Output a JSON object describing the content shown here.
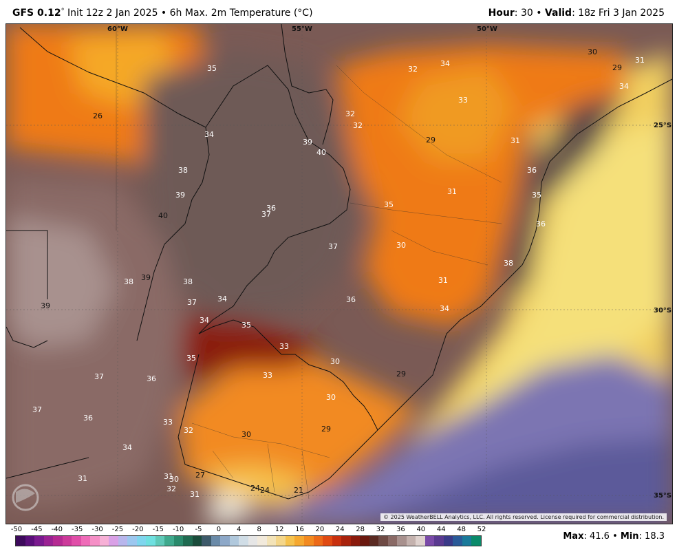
{
  "header": {
    "model": "GFS 0.12",
    "model_deg": "°",
    "init": " Init 12z 2 Jan 2025 • 6h Max. 2m Temperature (°C)",
    "hour_label": "Hour",
    "hour_value": ": 30 • ",
    "valid_label": "Valid",
    "valid_value": ": 18z Fri 3 Jan 2025"
  },
  "map": {
    "coords": [
      "60°W",
      "55°W",
      "50°W",
      "25°S",
      "30°S",
      "35°S"
    ],
    "labels": [
      "26",
      "35",
      "34",
      "38",
      "39",
      "40",
      "36",
      "37",
      "39",
      "38",
      "39",
      "38",
      "37",
      "34",
      "34",
      "35",
      "35",
      "37",
      "36",
      "37",
      "36",
      "34",
      "33",
      "32",
      "31",
      "30",
      "31",
      "32",
      "31",
      "27",
      "24",
      "24",
      "21",
      "29",
      "30",
      "33",
      "30",
      "33",
      "29",
      "30",
      "36",
      "37",
      "34",
      "31",
      "30",
      "36",
      "35",
      "31",
      "38",
      "36",
      "35",
      "33",
      "29",
      "31",
      "32",
      "32",
      "34",
      "32",
      "30",
      "29",
      "31",
      "34",
      "39",
      "40"
    ],
    "copyright": "© 2025 WeatherBELL Analytics, LLC. All rights reserved. License required for commercial distribution."
  },
  "legend": {
    "ticks": [
      "-50",
      "-45",
      "-40",
      "-35",
      "-30",
      "-25",
      "-20",
      "-15",
      "-10",
      "-5",
      "0",
      "4",
      "8",
      "12",
      "16",
      "20",
      "24",
      "28",
      "32",
      "36",
      "40",
      "44",
      "48",
      "52"
    ],
    "colors": [
      "#3d0a5c",
      "#5a0f7a",
      "#7a1a8f",
      "#9a2293",
      "#b52a92",
      "#cc3a9a",
      "#e04ea8",
      "#ef6bb8",
      "#f58fc6",
      "#f7b0d6",
      "#d9a0e6",
      "#b8b6ec",
      "#9cc7ef",
      "#7fd6ee",
      "#6fe0e0",
      "#5fc9b8",
      "#3fa98d",
      "#2a8a6c",
      "#1f6a50",
      "#1a4c3b",
      "#3d5a6a",
      "#6a8aa8",
      "#8da8c8",
      "#b0c8dc",
      "#d0dde6",
      "#e6e6e6",
      "#f2eadc",
      "#f3e3b8",
      "#f4d68a",
      "#f5c24e",
      "#f5a830",
      "#f28a20",
      "#ec6a18",
      "#e04a12",
      "#c8300e",
      "#a8220c",
      "#8a1a0c",
      "#6a180e",
      "#5a2a22",
      "#6e4a44",
      "#8a6a66",
      "#a8918e",
      "#c4b2ae",
      "#dfd2ce",
      "#7a4aa8",
      "#5a3a90",
      "#3a3a88",
      "#2a5a98",
      "#1a7a9a",
      "#0a8a6a"
    ]
  },
  "stats": {
    "max_label": "Max",
    "max_value": ": 41.6 • ",
    "min_label": "Min",
    "min_value": ": 18.3"
  }
}
